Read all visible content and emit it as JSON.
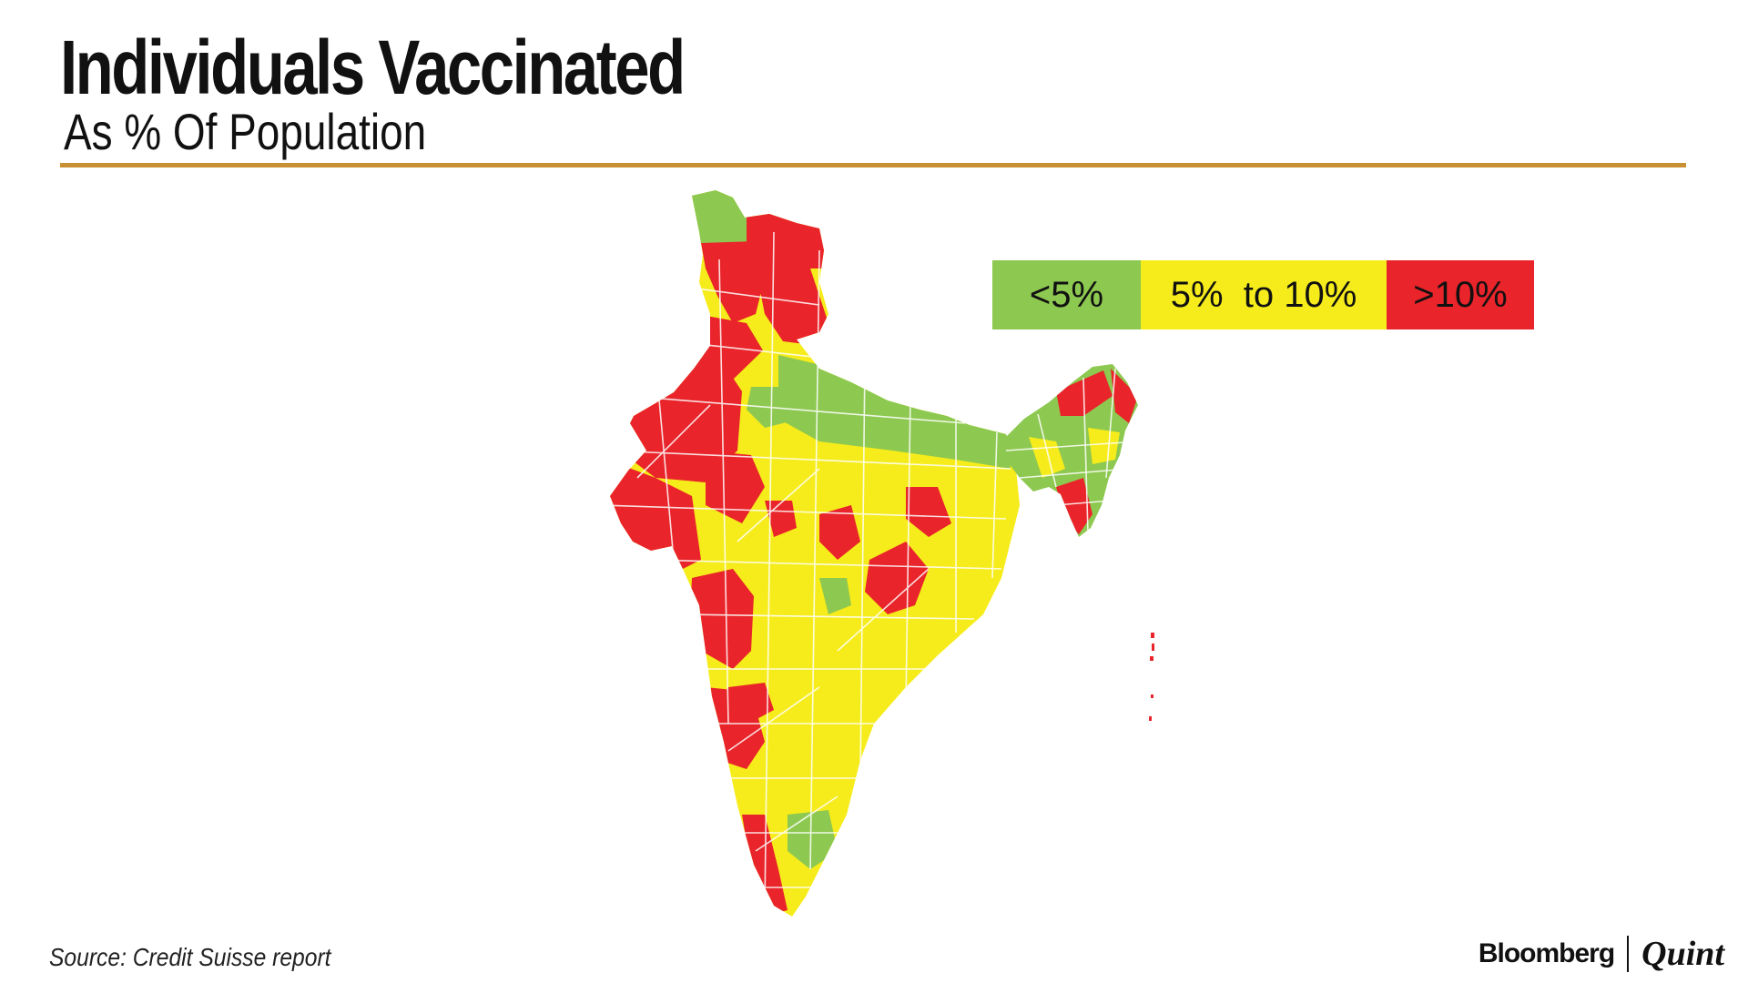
{
  "header": {
    "title": "Individuals Vaccinated",
    "subtitle": "As % Of Population"
  },
  "legend": {
    "items": [
      {
        "label": "<5%",
        "color": "#8dc850"
      },
      {
        "label": "5%  to 10%",
        "color": "#f6ec1b"
      },
      {
        "label": ">10%",
        "color": "#e9242a"
      }
    ]
  },
  "map": {
    "region": "India",
    "fill_classes": {
      "low": "#8dc850",
      "mid": "#f6ec1b",
      "high": "#e9242a"
    }
  },
  "footer": {
    "source": "Source: Credit Suisse report",
    "brand_primary": "Bloomberg",
    "brand_secondary": "Quint"
  },
  "colors": {
    "accent_rule": "#c98f33"
  }
}
